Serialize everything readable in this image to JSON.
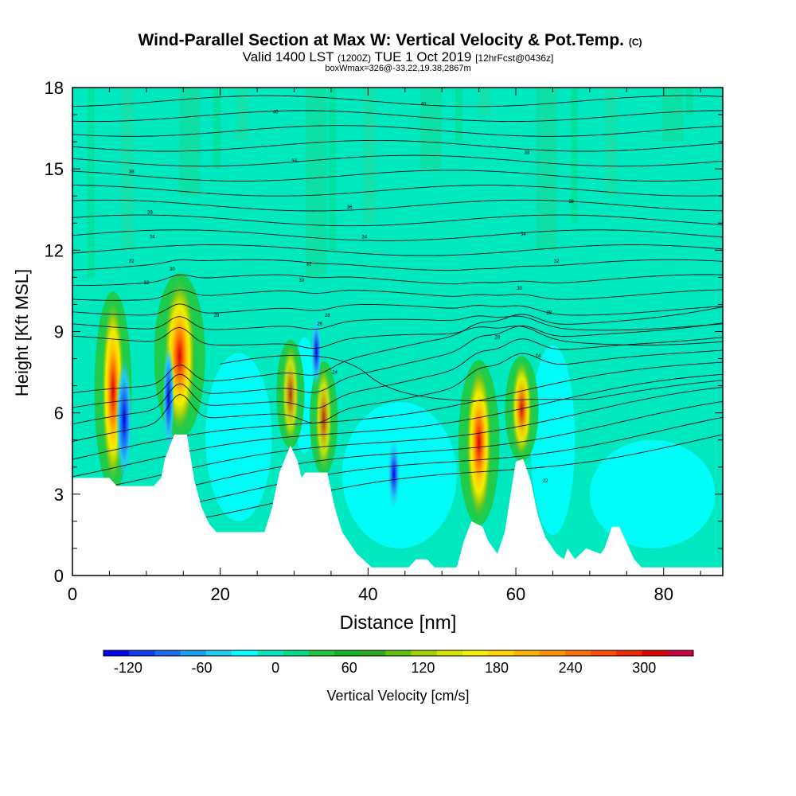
{
  "chart_data": {
    "type": "heatmap",
    "title": "Wind-Parallel Section at Max W: Vertical Velocity & Pot.Temp.",
    "title_mark": "(C)",
    "subtitle": {
      "valid": "Valid 1400 LST",
      "utc": "(1200Z)",
      "date": "TUE 1 Oct 2019",
      "forecast": "[12hrFcst@0436z]"
    },
    "box_info": "boxWmax=326@-33.22,19.38,2867m",
    "xlabel": "Distance [nm]",
    "ylabel": "Height [Kft MSL]",
    "xlim": [
      0,
      88
    ],
    "ylim": [
      0,
      18
    ],
    "x_ticks": [
      0,
      20,
      40,
      60,
      80
    ],
    "y_ticks": [
      0,
      3,
      6,
      9,
      12,
      15,
      18
    ],
    "colorbar": {
      "label": "Vertical Velocity [cm/s]",
      "min": -140,
      "max": 340,
      "step": 20,
      "tick_labels": [
        "-120",
        "-60",
        "0",
        "60",
        "120",
        "180",
        "240",
        "300"
      ],
      "tick_values": [
        -120,
        -60,
        0,
        60,
        120,
        180,
        240,
        300
      ],
      "colors": [
        "#0000ee",
        "#0c3cf2",
        "#1a6cf0",
        "#1d9ef0",
        "#22ccf2",
        "#00ffff",
        "#00e8c0",
        "#00dd88",
        "#20c840",
        "#10b420",
        "#2ca81e",
        "#60c010",
        "#a0d200",
        "#d4e400",
        "#f0f000",
        "#ffd200",
        "#ffb400",
        "#ff9400",
        "#ff7000",
        "#ff4c00",
        "#f02800",
        "#dc0000",
        "#cc0040"
      ]
    },
    "terrain_kft": [
      [
        0,
        3.6
      ],
      [
        5,
        3.6
      ],
      [
        6,
        3.3
      ],
      [
        11,
        3.3
      ],
      [
        12,
        3.6
      ],
      [
        12.5,
        4.3
      ],
      [
        13.2,
        4.8
      ],
      [
        13.8,
        5.2
      ],
      [
        15.5,
        5.2
      ],
      [
        16.5,
        3.5
      ],
      [
        17.5,
        2.5
      ],
      [
        18.5,
        1.9
      ],
      [
        19.5,
        1.6
      ],
      [
        26,
        1.6
      ],
      [
        27,
        2.5
      ],
      [
        28,
        3.8
      ],
      [
        29.5,
        4.8
      ],
      [
        30.5,
        4.2
      ],
      [
        31,
        3.6
      ],
      [
        31.5,
        3.8
      ],
      [
        34.5,
        3.8
      ],
      [
        35.5,
        2.5
      ],
      [
        36.5,
        1.6
      ],
      [
        38.5,
        0.8
      ],
      [
        40.5,
        0.3
      ],
      [
        45.5,
        0.3
      ],
      [
        46.5,
        0.6
      ],
      [
        48,
        0.6
      ],
      [
        49,
        0.3
      ],
      [
        52,
        0.3
      ],
      [
        53,
        1.3
      ],
      [
        54,
        2
      ],
      [
        55.5,
        1.8
      ],
      [
        56.2,
        1.3
      ],
      [
        57.5,
        0.8
      ],
      [
        58.5,
        1.6
      ],
      [
        59,
        2.5
      ],
      [
        60,
        4.2
      ],
      [
        61,
        4.3
      ],
      [
        62,
        3.5
      ],
      [
        63,
        2.2
      ],
      [
        64,
        1.4
      ],
      [
        65.5,
        0.8
      ],
      [
        66.5,
        0.6
      ],
      [
        67,
        1
      ],
      [
        68,
        0.6
      ],
      [
        69.5,
        1
      ],
      [
        70.5,
        0.9
      ],
      [
        71.5,
        0.8
      ],
      [
        72,
        1
      ],
      [
        73,
        1.8
      ],
      [
        74,
        1.8
      ],
      [
        75,
        1.2
      ],
      [
        76,
        0.6
      ],
      [
        77,
        0.3
      ],
      [
        88,
        0.3
      ]
    ],
    "updrafts": [
      {
        "x": 5.5,
        "y_bottom": 3.3,
        "y_top": 10.3,
        "wmax": 180
      },
      {
        "x": 14.5,
        "y_bottom": 5.2,
        "y_top": 11.0,
        "wmax": 326
      },
      {
        "x": 29.5,
        "y_bottom": 4.8,
        "y_top": 8.6,
        "wmax": 80
      },
      {
        "x": 34.0,
        "y_bottom": 3.8,
        "y_top": 7.8,
        "wmax": 80
      },
      {
        "x": 55.0,
        "y_bottom": 2.0,
        "y_top": 7.8,
        "wmax": 220
      },
      {
        "x": 60.8,
        "y_bottom": 4.3,
        "y_top": 8.0,
        "wmax": 140
      }
    ],
    "downdrafts": [
      {
        "x": 7.0,
        "y_bottom": 3.5,
        "y_top": 8.0,
        "wmin": -120
      },
      {
        "x": 13.0,
        "y_bottom": 4.6,
        "y_top": 8.5,
        "wmin": -50
      },
      {
        "x": 43.5,
        "y_bottom": 2.5,
        "y_top": 5.0,
        "wmin": -60
      },
      {
        "x": 33.0,
        "y_bottom": 7.0,
        "y_top": 9.5,
        "wmin": -40
      }
    ],
    "theta_labels": [
      {
        "text": "40",
        "x": 27.5,
        "y": 17.1
      },
      {
        "text": "40",
        "x": 47.5,
        "y": 17.4
      },
      {
        "text": "38",
        "x": 8,
        "y": 14.9
      },
      {
        "text": "38",
        "x": 30,
        "y": 15.3
      },
      {
        "text": "38",
        "x": 61.5,
        "y": 15.6
      },
      {
        "text": "36",
        "x": 10.5,
        "y": 13.4
      },
      {
        "text": "36",
        "x": 37.5,
        "y": 13.6
      },
      {
        "text": "36",
        "x": 67.5,
        "y": 13.8
      },
      {
        "text": "34",
        "x": 10.8,
        "y": 12.5
      },
      {
        "text": "34",
        "x": 39.5,
        "y": 12.5
      },
      {
        "text": "34",
        "x": 61,
        "y": 12.6
      },
      {
        "text": "32",
        "x": 8,
        "y": 11.6
      },
      {
        "text": "32",
        "x": 32,
        "y": 11.5
      },
      {
        "text": "32",
        "x": 65.5,
        "y": 11.6
      },
      {
        "text": "32",
        "x": 10,
        "y": 10.8
      },
      {
        "text": "30",
        "x": 31,
        "y": 10.9
      },
      {
        "text": "30",
        "x": 60.5,
        "y": 10.6
      },
      {
        "text": "30",
        "x": 13.5,
        "y": 11.3
      },
      {
        "text": "28",
        "x": 19.5,
        "y": 9.6
      },
      {
        "text": "28",
        "x": 34.5,
        "y": 9.6
      },
      {
        "text": "28",
        "x": 64.5,
        "y": 9.7
      },
      {
        "text": "28",
        "x": 57.5,
        "y": 8.8
      },
      {
        "text": "26",
        "x": 33.5,
        "y": 9.3
      },
      {
        "text": "24",
        "x": 35.5,
        "y": 7.5
      },
      {
        "text": "24",
        "x": 63,
        "y": 8.1
      },
      {
        "text": "22",
        "x": 64,
        "y": 3.5
      }
    ]
  }
}
